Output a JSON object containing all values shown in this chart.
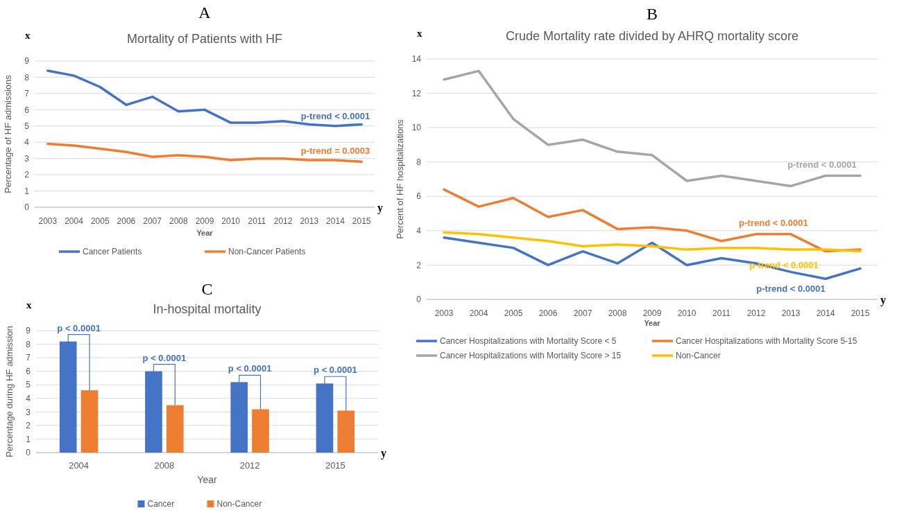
{
  "chart_data": [
    {
      "type": "line",
      "title": "A",
      "subtitle": "Mortality of Patients with HF",
      "xlabel": "Year",
      "ylabel": "Percentage of HF admissions",
      "categories": [
        "2003",
        "2004",
        "2005",
        "2006",
        "2007",
        "2008",
        "2009",
        "2010",
        "2011",
        "2012",
        "2013",
        "2014",
        "2015"
      ],
      "series": [
        {
          "name": "Cancer Patients",
          "color": "#4472c4",
          "values": [
            8.4,
            8.1,
            7.4,
            6.3,
            6.8,
            5.9,
            6.0,
            5.2,
            5.2,
            5.3,
            5.1,
            5.0,
            5.1
          ]
        },
        {
          "name": "Non-Cancer Patients",
          "color": "#ed7d31",
          "values": [
            3.9,
            3.8,
            3.6,
            3.4,
            3.1,
            3.2,
            3.1,
            2.9,
            3.0,
            3.0,
            2.9,
            2.9,
            2.8
          ]
        }
      ],
      "ylim": [
        0,
        9
      ],
      "yticks": [
        0,
        1,
        2,
        3,
        4,
        5,
        6,
        7,
        8,
        9
      ],
      "grid": "y",
      "legend": "bottom",
      "marker": "none",
      "line_style": "solid",
      "annotations": [
        "x",
        "y",
        "p-trend < 0.0001",
        "p-trend = 0.0003"
      ]
    },
    {
      "type": "line",
      "title": "B",
      "subtitle": "Crude Mortality rate divided by AHRQ mortality score",
      "xlabel": "Year",
      "ylabel": "Percent of HF hospitalizations",
      "categories": [
        "2003",
        "2004",
        "2005",
        "2006",
        "2007",
        "2008",
        "2009",
        "2010",
        "2011",
        "2012",
        "2013",
        "2014",
        "2015"
      ],
      "series": [
        {
          "name": "Cancer Hospitalizations with Mortality Score < 5",
          "color": "#4472c4",
          "values": [
            3.6,
            3.3,
            3.0,
            2.0,
            2.8,
            2.1,
            3.3,
            2.0,
            2.4,
            2.1,
            1.6,
            1.2,
            1.8
          ]
        },
        {
          "name": "Cancer Hospitalizations with Mortality Score 5-15",
          "color": "#ed7d31",
          "values": [
            6.4,
            5.4,
            5.9,
            4.8,
            5.2,
            4.1,
            4.2,
            4.0,
            3.4,
            3.8,
            3.8,
            2.8,
            2.9
          ]
        },
        {
          "name": "Cancer Hospitalizations with Mortality Score > 15",
          "color": "#a5a5a5",
          "values": [
            12.8,
            13.3,
            10.5,
            9.0,
            9.3,
            8.6,
            8.4,
            6.9,
            7.2,
            6.9,
            6.6,
            7.2,
            7.2
          ]
        },
        {
          "name": "Non-Cancer",
          "color": "#ffc000",
          "values": [
            3.9,
            3.8,
            3.6,
            3.4,
            3.1,
            3.2,
            3.1,
            2.9,
            3.0,
            3.0,
            2.9,
            2.9,
            2.8
          ]
        }
      ],
      "ylim": [
        0,
        14
      ],
      "yticks": [
        0,
        2,
        4,
        6,
        8,
        10,
        12,
        14
      ],
      "grid": "y",
      "legend": "bottom",
      "marker": "none",
      "line_style": "solid",
      "annotations": [
        "x",
        "y",
        "p-trend < 0.0001",
        "p-trend < 0.0001",
        "p-trend < 0.0001",
        "p-trend < 0.0001"
      ]
    },
    {
      "type": "bar",
      "title": "C",
      "subtitle": "In-hospital mortality",
      "xlabel": "Year",
      "ylabel": "Percentage during HF admission",
      "categories": [
        "2004",
        "2008",
        "2012",
        "2015"
      ],
      "series": [
        {
          "name": "Cancer",
          "color": "#4472c4",
          "values": [
            8.2,
            6.0,
            5.2,
            5.1
          ]
        },
        {
          "name": "Non-Cancer",
          "color": "#ed7d31",
          "values": [
            4.6,
            3.5,
            3.2,
            3.1
          ]
        }
      ],
      "ylim": [
        0,
        9
      ],
      "yticks": [
        0,
        1,
        2,
        3,
        4,
        5,
        6,
        7,
        8,
        9
      ],
      "grid": "y",
      "legend": "bottom",
      "annotations": [
        "x",
        "y",
        {
          "text": "p < 0.0001",
          "x": "2004",
          "y": 8.2
        },
        {
          "text": "p < 0.0001",
          "x": "2008",
          "y": 6.0
        },
        {
          "text": "p < 0.0001",
          "x": "2012",
          "y": 5.2
        },
        {
          "text": "p < 0.0001",
          "x": "2015",
          "y": 5.1
        }
      ]
    }
  ]
}
